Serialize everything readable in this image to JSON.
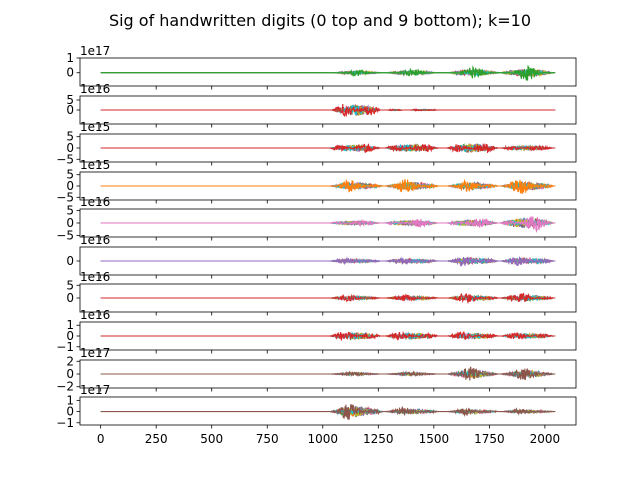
{
  "chart_data": {
    "type": "line",
    "title": "Sig of handwritten digits (0 top and 9 bottom); k=10",
    "xlabel": "",
    "ylabel": "",
    "x_range": [
      0,
      2047
    ],
    "xlim": [
      -93,
      2140
    ],
    "x_ticks": [
      "0",
      "250",
      "500",
      "750",
      "1000",
      "1250",
      "1500",
      "1750",
      "2000"
    ],
    "x_tick_values": [
      0,
      250,
      500,
      750,
      1000,
      1250,
      1500,
      1750,
      2000
    ],
    "series_colors": [
      "#1f77b4",
      "#ff7f0e",
      "#2ca02c",
      "#d62728",
      "#9467bd",
      "#8c564b",
      "#e377c2",
      "#7f7f7f",
      "#bcbd22",
      "#17becf"
    ],
    "grid": false,
    "panels": [
      {
        "digit": 0,
        "offset_text": "1e17",
        "ylim": [
          -0.9,
          1.0
        ],
        "y_ticks": [
          "1",
          "0"
        ],
        "y_tick_values": [
          1,
          0
        ],
        "amp": 0.55,
        "front": 2,
        "segments": [
          [
            1040,
            1270,
            0.4
          ],
          [
            1280,
            1520,
            0.5
          ],
          [
            1560,
            1800,
            0.7
          ],
          [
            1800,
            2040,
            1.0
          ]
        ]
      },
      {
        "digit": 1,
        "offset_text": "1e16",
        "ylim": [
          -7,
          7
        ],
        "y_ticks": [
          "5",
          "0"
        ],
        "y_tick_values": [
          5,
          0
        ],
        "amp": 6.0,
        "front": 3,
        "segments": [
          [
            1040,
            1260,
            0.9
          ],
          [
            1290,
            1360,
            0.1
          ],
          [
            1390,
            1520,
            0.12
          ]
        ]
      },
      {
        "digit": 2,
        "offset_text": "1e15",
        "ylim": [
          -6.2,
          6.2
        ],
        "y_ticks": [
          "5",
          "0",
          "−5"
        ],
        "y_tick_values": [
          5,
          0,
          -5
        ],
        "amp": 4.6,
        "front": 3,
        "segments": [
          [
            1030,
            1260,
            0.6
          ],
          [
            1280,
            1520,
            0.7
          ],
          [
            1560,
            1790,
            0.8
          ],
          [
            1800,
            2040,
            0.4
          ]
        ]
      },
      {
        "digit": 3,
        "offset_text": "1e15",
        "ylim": [
          -6.2,
          6.2
        ],
        "y_ticks": [
          "5",
          "0",
          "−5"
        ],
        "y_tick_values": [
          5,
          0,
          -5
        ],
        "amp": 5.0,
        "front": 1,
        "segments": [
          [
            1030,
            1270,
            0.6
          ],
          [
            1280,
            1520,
            0.7
          ],
          [
            1560,
            1790,
            0.6
          ],
          [
            1800,
            2040,
            0.8
          ]
        ]
      },
      {
        "digit": 4,
        "offset_text": "1e16",
        "ylim": [
          -5.6,
          5.6
        ],
        "y_ticks": [
          "5",
          "0",
          "−5"
        ],
        "y_tick_values": [
          5,
          0,
          -5
        ],
        "amp": 4.0,
        "front": 6,
        "segments": [
          [
            1030,
            1260,
            0.35
          ],
          [
            1280,
            1520,
            0.5
          ],
          [
            1560,
            1790,
            0.6
          ],
          [
            1800,
            2040,
            1.0
          ]
        ]
      },
      {
        "digit": 5,
        "offset_text": "1e16",
        "ylim": [
          -1.6,
          1.6
        ],
        "y_ticks": [
          "0"
        ],
        "y_tick_values": [
          0
        ],
        "amp": 0.8,
        "front": 4,
        "segments": [
          [
            1030,
            1260,
            0.5
          ],
          [
            1280,
            1520,
            0.6
          ],
          [
            1560,
            1790,
            0.9
          ],
          [
            1800,
            2040,
            0.8
          ]
        ]
      },
      {
        "digit": 6,
        "offset_text": "1e16",
        "ylim": [
          -5.5,
          5.5
        ],
        "y_ticks": [
          "5",
          "0"
        ],
        "y_tick_values": [
          5,
          0
        ],
        "amp": 3.0,
        "front": 3,
        "segments": [
          [
            1030,
            1260,
            0.5
          ],
          [
            1280,
            1520,
            0.5
          ],
          [
            1560,
            1790,
            0.7
          ],
          [
            1800,
            2040,
            0.8
          ]
        ]
      },
      {
        "digit": 7,
        "offset_text": "1e16",
        "ylim": [
          -1.3,
          1.3
        ],
        "y_ticks": [
          "1",
          "0",
          "−1"
        ],
        "y_tick_values": [
          1,
          0,
          -1
        ],
        "amp": 0.9,
        "front": 3,
        "segments": [
          [
            1030,
            1260,
            0.7
          ],
          [
            1280,
            1520,
            0.6
          ],
          [
            1560,
            1790,
            0.6
          ],
          [
            1800,
            2040,
            0.5
          ]
        ]
      },
      {
        "digit": 8,
        "offset_text": "1e17",
        "ylim": [
          -2.2,
          2.2
        ],
        "y_ticks": [
          "2",
          "0",
          "−2"
        ],
        "y_tick_values": [
          2,
          0,
          -2
        ],
        "amp": 1.5,
        "front": 5,
        "segments": [
          [
            1030,
            1260,
            0.25
          ],
          [
            1280,
            1520,
            0.25
          ],
          [
            1560,
            1790,
            0.8
          ],
          [
            1800,
            2040,
            0.7
          ]
        ]
      },
      {
        "digit": 9,
        "offset_text": "1e17",
        "ylim": [
          -1.2,
          1.3
        ],
        "y_ticks": [
          "1",
          "0",
          "−1"
        ],
        "y_tick_values": [
          1,
          0,
          -1
        ],
        "amp": 0.9,
        "front": 5,
        "segments": [
          [
            1030,
            1270,
            1.0
          ],
          [
            1280,
            1520,
            0.5
          ],
          [
            1560,
            1790,
            0.4
          ],
          [
            1800,
            2040,
            0.3
          ]
        ]
      }
    ]
  }
}
